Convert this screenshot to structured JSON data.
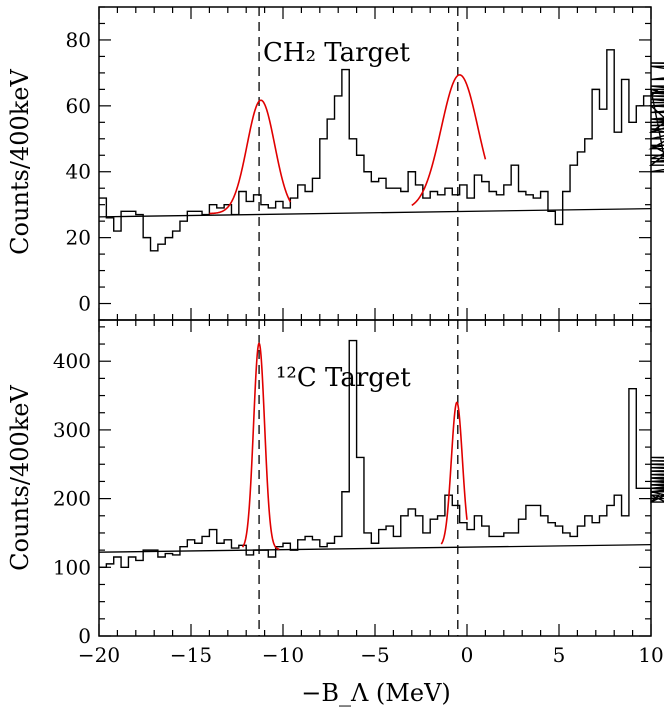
{
  "chart_data": [
    {
      "type": "histogram",
      "panel": "top",
      "title": "CH₂ Target",
      "ylabel": "Counts/400keV",
      "xlim": [
        -20,
        10
      ],
      "ylim": [
        -5,
        90
      ],
      "yticks": [
        0,
        20,
        40,
        60,
        80
      ],
      "bin_width": 0.4,
      "bin_start": -20,
      "histogram_counts": [
        32,
        26,
        22,
        28,
        28,
        27,
        20,
        16,
        18,
        20,
        22,
        25,
        28,
        28,
        27,
        30,
        29,
        30,
        27,
        34,
        31,
        33,
        30,
        29,
        31,
        29,
        32,
        36,
        34,
        38,
        50,
        56,
        63,
        71,
        50,
        45,
        40,
        37,
        38,
        35,
        35,
        34,
        40,
        36,
        32,
        34,
        33,
        35,
        33,
        36,
        32,
        39,
        37,
        34,
        33,
        36,
        42,
        34,
        33,
        32,
        34,
        28,
        24,
        34,
        42,
        46,
        50,
        65,
        59,
        77,
        52,
        68,
        55,
        60,
        63,
        63,
        65,
        42,
        47,
        52,
        60,
        48,
        40,
        43,
        45,
        44,
        53,
        47,
        55,
        54,
        56,
        52,
        64,
        68,
        73,
        72,
        65,
        50,
        62,
        56,
        60,
        64,
        58,
        64,
        60,
        62,
        58,
        63,
        60,
        64,
        64,
        60,
        55,
        60,
        64,
        60,
        64,
        66,
        55,
        61,
        60,
        65
      ],
      "baseline": {
        "x": [
          -20,
          10
        ],
        "y": [
          26.3,
          28.8
        ]
      },
      "peak_fits": [
        {
          "center": -11.2,
          "amplitude": 34.4,
          "sigma": 0.75,
          "baseline": 27.3,
          "x_range": [
            -14,
            -9.6
          ]
        },
        {
          "center": -0.4,
          "amplitude": 41.0,
          "sigma": 1.0,
          "baseline": 28.4,
          "x_range": [
            -3,
            1
          ]
        }
      ],
      "reference_lines_x": [
        -11.3,
        -0.5
      ],
      "xticks": [
        -20,
        -15,
        -10,
        -5,
        0,
        5,
        10
      ],
      "xtick_labels_shown": false
    },
    {
      "type": "histogram",
      "panel": "bottom",
      "title": "¹²C Target",
      "ylabel": "Counts/400keV",
      "xlabel": "−B_Λ (MeV)",
      "xlim": [
        -20,
        10
      ],
      "ylim": [
        0,
        460
      ],
      "yticks": [
        0,
        100,
        200,
        300,
        400
      ],
      "xticks": [
        -20,
        -15,
        -10,
        -5,
        0,
        5,
        10
      ],
      "xtick_labels_shown": true,
      "bin_width": 0.4,
      "bin_start": -20,
      "histogram_counts": [
        100,
        105,
        115,
        100,
        115,
        110,
        125,
        125,
        115,
        120,
        118,
        130,
        140,
        135,
        145,
        155,
        135,
        140,
        128,
        132,
        118,
        125,
        125,
        115,
        130,
        135,
        125,
        140,
        145,
        140,
        130,
        135,
        145,
        210,
        430,
        260,
        150,
        135,
        155,
        160,
        145,
        175,
        185,
        175,
        150,
        170,
        175,
        205,
        190,
        165,
        155,
        175,
        160,
        145,
        145,
        150,
        150,
        170,
        190,
        190,
        175,
        165,
        160,
        150,
        145,
        160,
        175,
        165,
        175,
        190,
        205,
        175,
        360,
        215,
        215,
        195,
        205,
        195,
        210,
        200,
        215,
        210,
        210,
        220,
        215,
        215,
        225,
        215,
        230,
        220,
        230,
        215,
        230,
        225,
        235,
        225,
        230,
        240,
        230,
        225,
        240,
        230,
        245,
        250,
        255,
        245,
        230,
        220,
        225,
        235,
        250,
        230,
        225,
        240,
        255,
        245,
        230,
        245,
        250,
        260,
        245,
        260
      ],
      "baseline": {
        "x": [
          -20,
          10
        ],
        "y": [
          122,
          133
        ]
      },
      "peak_fits": [
        {
          "center": -11.3,
          "amplitude": 300,
          "sigma": 0.3,
          "baseline": 126,
          "x_range": [
            -12.2,
            -10.2
          ]
        },
        {
          "center": -0.55,
          "amplitude": 210,
          "sigma": 0.3,
          "baseline": 130,
          "x_range": [
            -1.4,
            0
          ]
        }
      ],
      "reference_lines_x": [
        -11.3,
        -0.5
      ]
    }
  ],
  "colors": {
    "histogram": "#000000",
    "fit": "#e00000",
    "baseline": "#000000",
    "axes": "#000000"
  }
}
